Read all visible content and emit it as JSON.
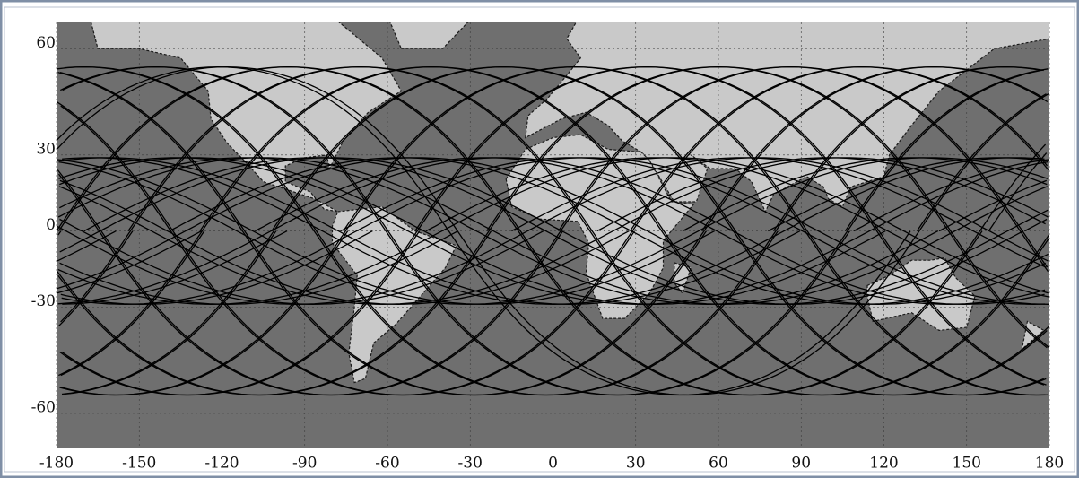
{
  "chart_data": {
    "type": "map",
    "xlim": [
      -180,
      180
    ],
    "ylim": [
      -66.5,
      65
    ],
    "xticks": [
      -180,
      -150,
      -120,
      -90,
      -60,
      -30,
      0,
      30,
      60,
      90,
      120,
      150,
      180
    ],
    "yticks": [
      60,
      30,
      0,
      -30,
      -60
    ],
    "grid": true
  }
}
